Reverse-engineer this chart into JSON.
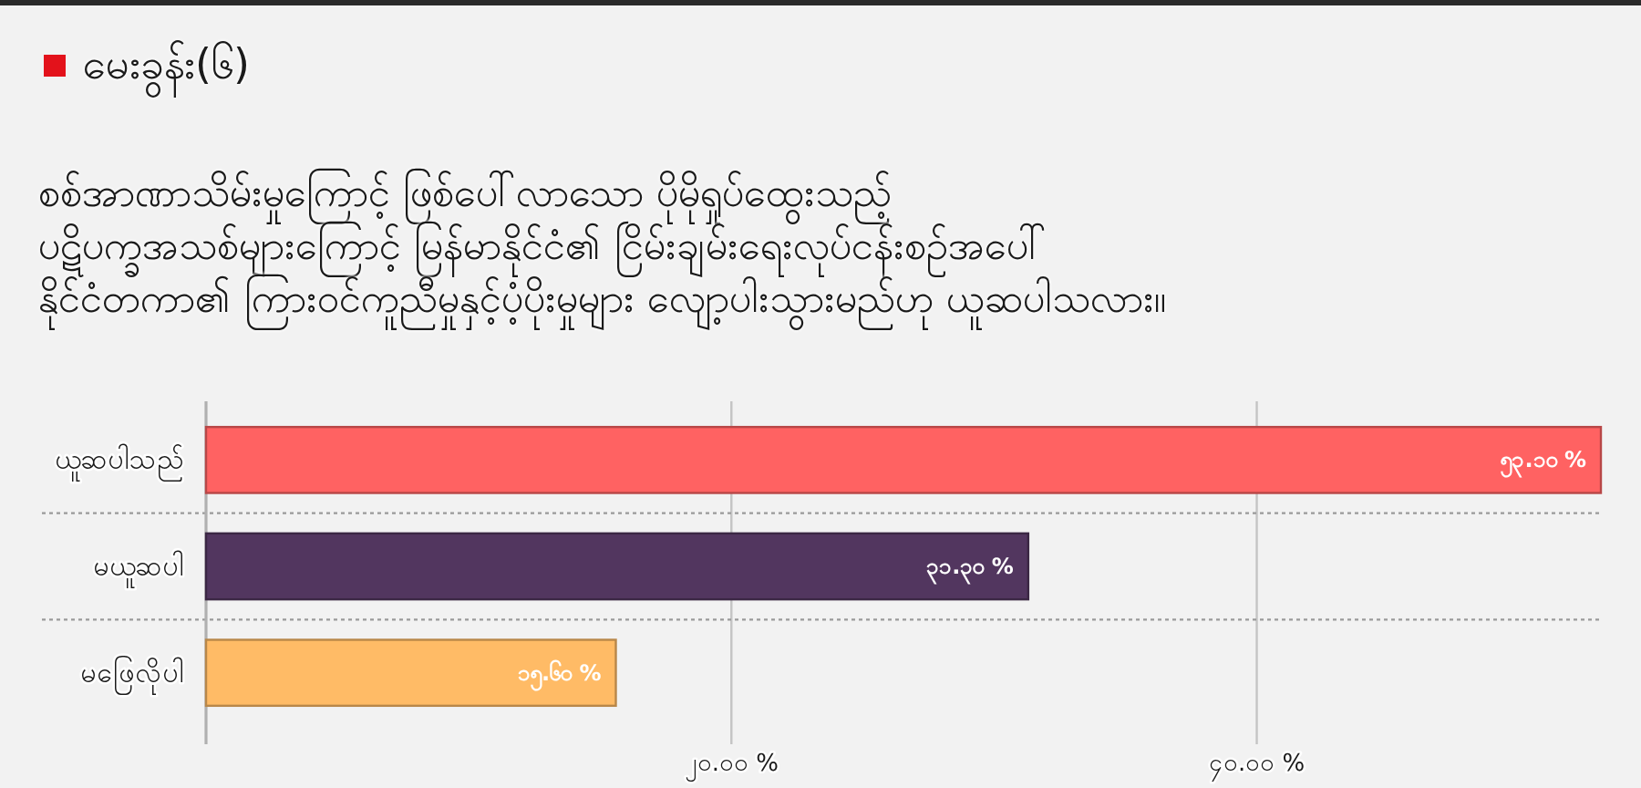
{
  "chart_data": {
    "type": "bar",
    "orientation": "horizontal",
    "title": "မေးခွန်း(၆)",
    "subtitle": "စစ်အာဏာသိမ်းမှုကြောင့် ဖြစ်ပေါ်လာသော ပိုမိုရှုပ်ထွေးသည့်\nပဋိပက္ခအသစ်များကြောင့်  မြန်မာနိုင်ငံ၏ ငြိမ်းချမ်းရေးလုပ်ငန်းစဉ်အပေါ်\nနိုင်ငံတကာ၏ ကြားဝင်ကူညီမှုနှင့်ပံ့ပိုးမှုများ လျော့ပါးသွားမည်ဟု ယူဆပါသလား။",
    "categories": [
      "ယူဆပါသည်",
      "မယူဆပါ",
      "မဖြေလိုပါ"
    ],
    "values": [
      53.1,
      31.3,
      15.6
    ],
    "colors": [
      "#ff6262",
      "#52365f",
      "#ffbb66"
    ],
    "value_labels": [
      "၅၃.၁၀ %",
      "၃၁.၃၀ %",
      "၁၅.၆၀ %"
    ],
    "xlim": [
      0,
      53.1
    ],
    "xticks": [
      {
        "value": 20,
        "label": "၂၀.၀၀ %"
      },
      {
        "value": 40,
        "label": "၄၀.၀၀ %"
      }
    ],
    "grid": true
  }
}
